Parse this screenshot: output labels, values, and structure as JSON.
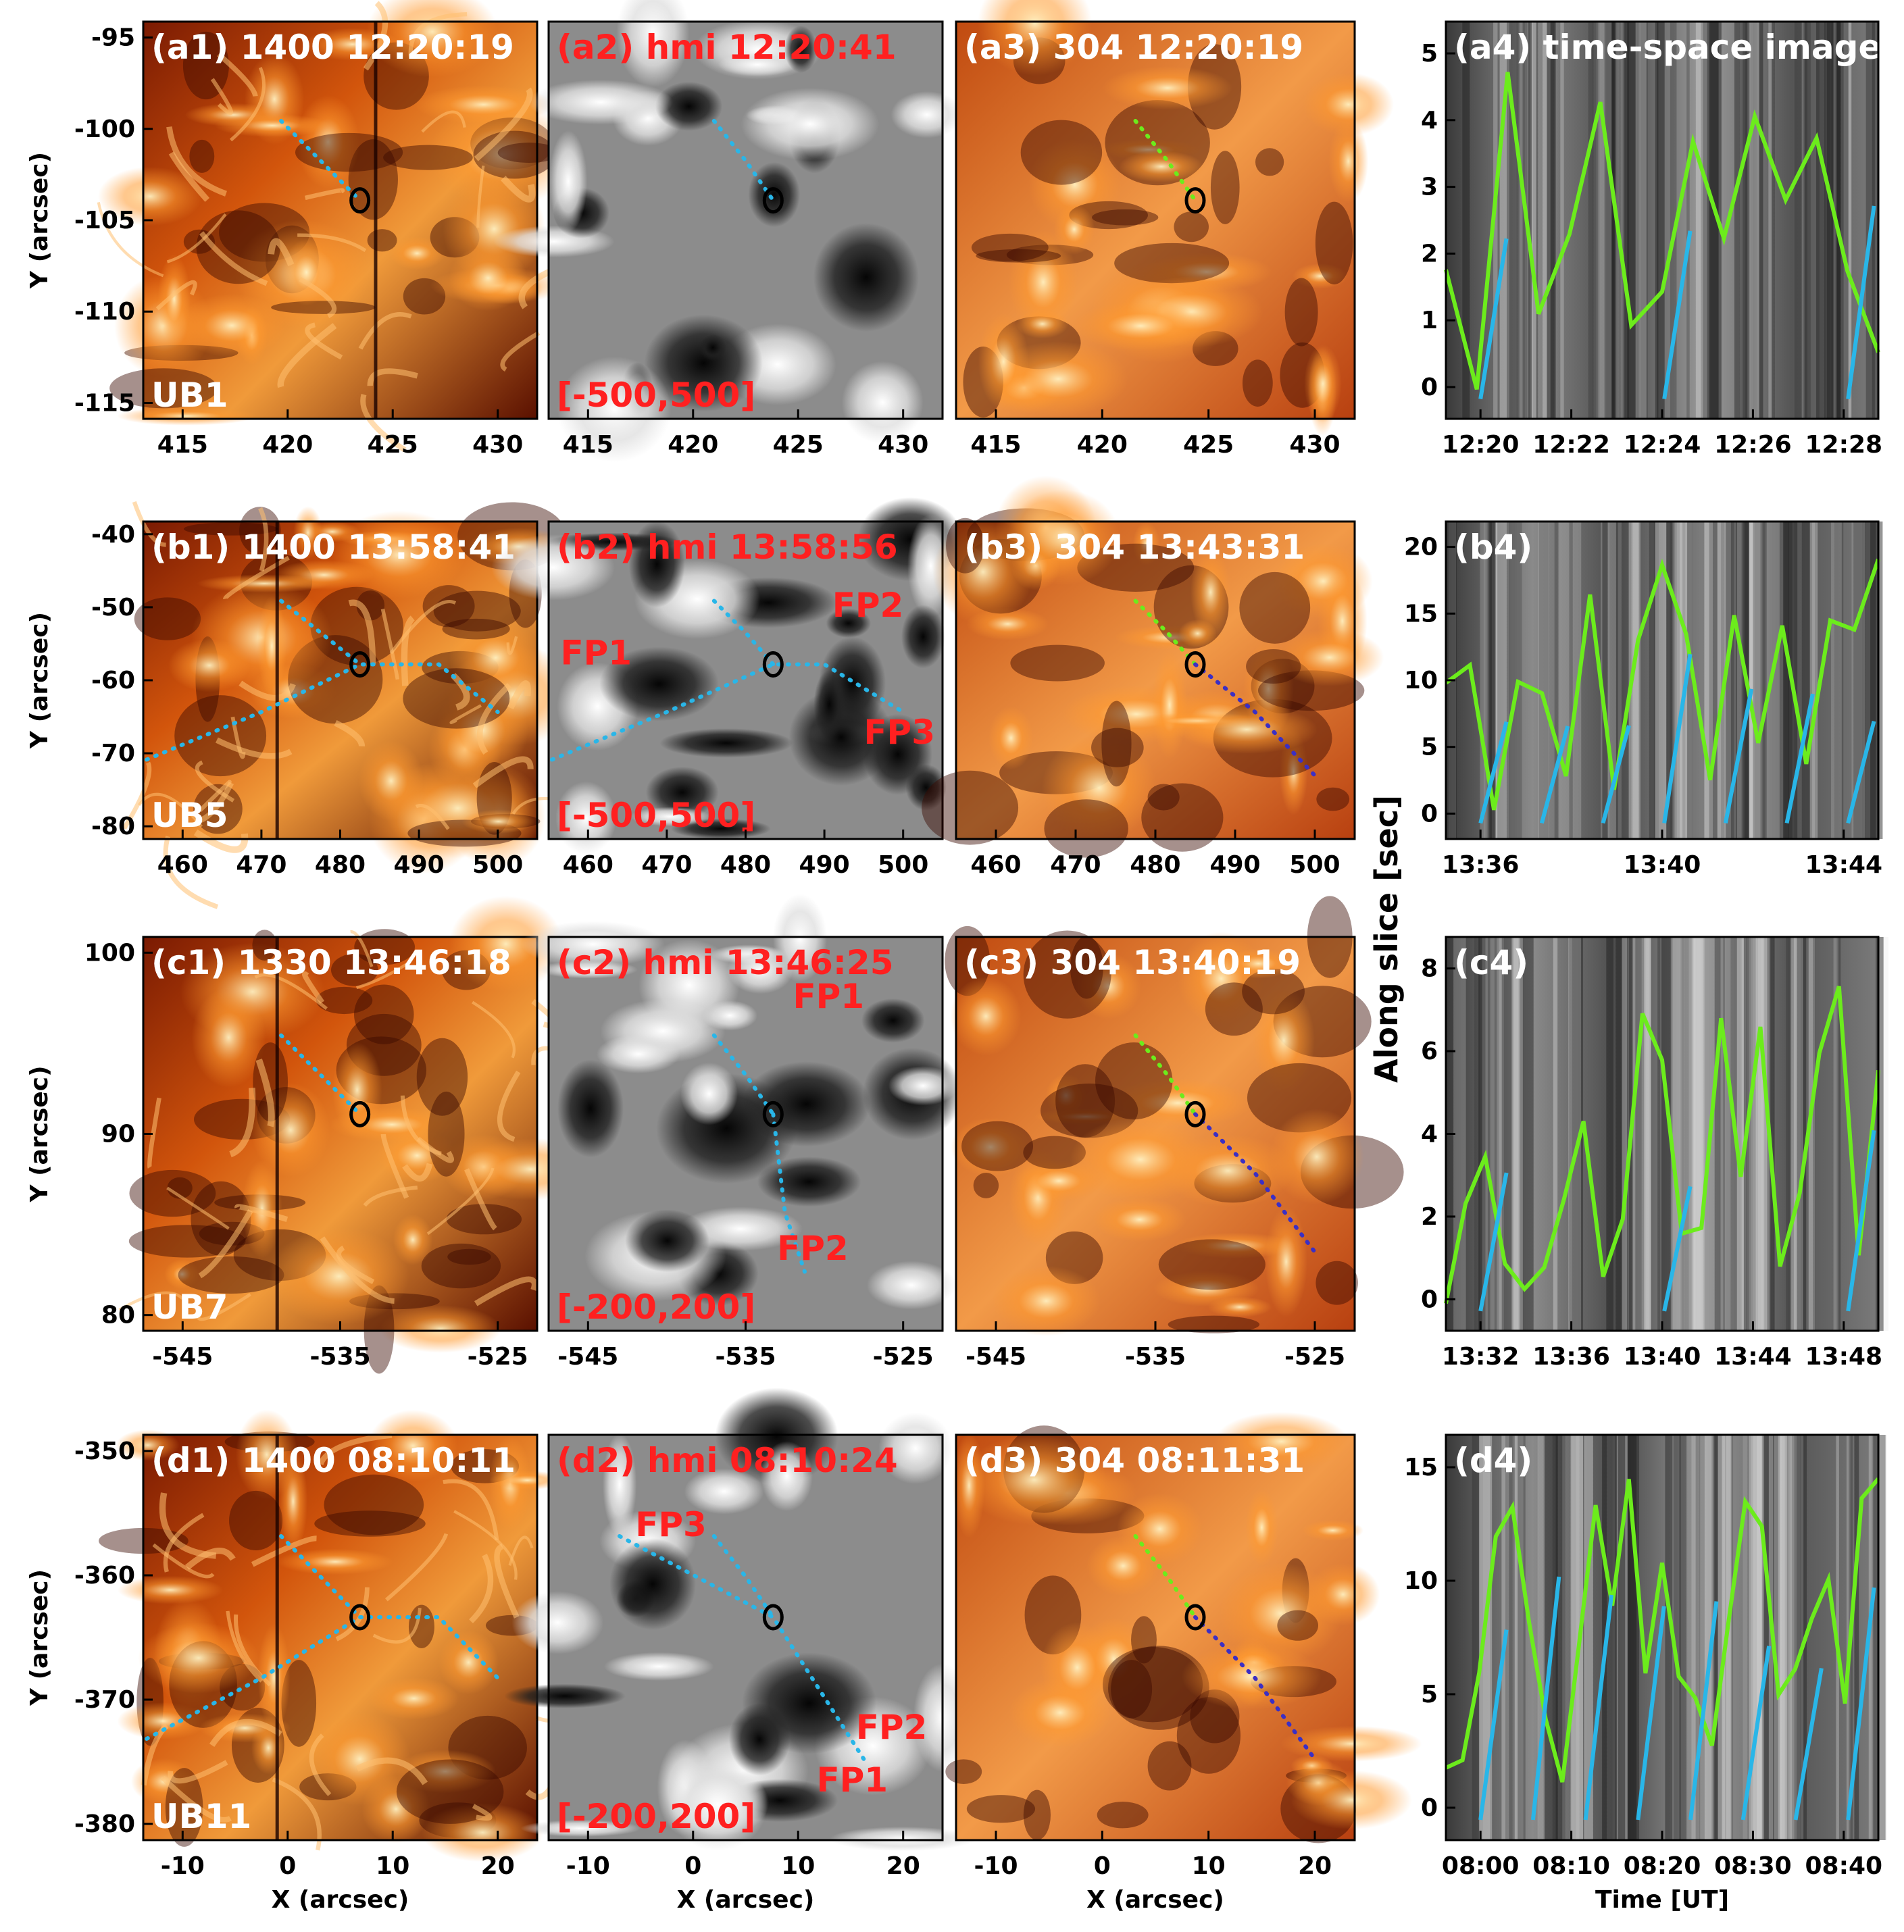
{
  "colors": {
    "heat_dark": "#2a0400",
    "heat_mid": "#b83a05",
    "heat_bright": "#ffd890",
    "gray_dark": "#151515",
    "gray_light": "#e8e8e8",
    "cyan_trace": "#29b6e8",
    "green_trace": "#6cec1c",
    "blue_trace": "#3b2fc4",
    "white_label": "#ffffff",
    "red_label": "#ff2020",
    "contour": "#000000"
  },
  "rows": [
    {
      "id": "a",
      "y_ticks": [
        "-95",
        "-100",
        "-105",
        "-110",
        "-115"
      ],
      "y_label": "Y (arcsec)",
      "x_ticks": [
        "415",
        "420",
        "425",
        "430"
      ],
      "x_ticks2": [
        "415",
        "420",
        "425",
        "430"
      ],
      "x_ticks3": [
        "415",
        "420",
        "425",
        "430"
      ],
      "x_label": "",
      "p1": {
        "label": "(a1)  1400  12:20:19",
        "id_label": "UB1"
      },
      "p2": {
        "label": "(a2)  hmi   12:20:41",
        "range": "[-500,500]",
        "fps": []
      },
      "p3": {
        "label": "(a3)  304   12:20:19"
      },
      "p4": {
        "label": "(a4) time-space image",
        "y_ticks": [
          "0",
          "1",
          "2",
          "3",
          "4",
          "5"
        ],
        "x_ticks": [
          "12:20",
          "12:22",
          "12:24",
          "12:26",
          "12:28"
        ]
      }
    },
    {
      "id": "b",
      "y_ticks": [
        "-40",
        "-50",
        "-60",
        "-70",
        "-80"
      ],
      "y_label": "Y (arcsec)",
      "x_ticks": [
        "460",
        "470",
        "480",
        "490",
        "500"
      ],
      "x_ticks2": [
        "460",
        "470",
        "480",
        "490",
        "500"
      ],
      "x_ticks3": [
        "460",
        "470",
        "480",
        "490",
        "500"
      ],
      "x_label": "",
      "p1": {
        "label": "(b1)  1400  13:58:41",
        "id_label": "UB5"
      },
      "p2": {
        "label": "(b2)  hmi   13:58:56",
        "range": "[-500,500]",
        "fps": [
          "FP1",
          "FP2",
          "FP3"
        ]
      },
      "p3": {
        "label": "(b3)  304   13:43:31"
      },
      "p4": {
        "label": "(b4)",
        "y_ticks": [
          "0",
          "5",
          "10",
          "15",
          "20"
        ],
        "x_ticks": [
          "13:36",
          "13:40",
          "13:44"
        ]
      }
    },
    {
      "id": "c",
      "y_ticks": [
        "100",
        "90",
        "80"
      ],
      "y_label": "Y (arcsec)",
      "x_ticks": [
        "-545",
        "-535",
        "-525"
      ],
      "x_ticks2": [
        "-545",
        "-535",
        "-525"
      ],
      "x_ticks3": [
        "-545",
        "-535",
        "-525"
      ],
      "x_label": "",
      "p1": {
        "label": "(c1)  1330  13:46:18",
        "id_label": "UB7"
      },
      "p2": {
        "label": "(c2)  hmi   13:46:25",
        "range": "[-200,200]",
        "fps": [
          "FP1",
          "FP2"
        ]
      },
      "p3": {
        "label": "(c3)  304   13:40:19"
      },
      "p4": {
        "label": "(c4)",
        "y_ticks": [
          "0",
          "2",
          "4",
          "6",
          "8"
        ],
        "x_ticks": [
          "13:32",
          "13:36",
          "13:40",
          "13:44",
          "13:48"
        ]
      }
    },
    {
      "id": "d",
      "y_ticks": [
        "-350",
        "-360",
        "-370",
        "-380"
      ],
      "y_label": "Y (arcsec)",
      "x_ticks": [
        "-10",
        "0",
        "10",
        "20"
      ],
      "x_ticks2": [
        "-10",
        "0",
        "10",
        "20"
      ],
      "x_ticks3": [
        "-10",
        "0",
        "10",
        "20"
      ],
      "x_label": "X (arcsec)",
      "p1": {
        "label": "(d1)  1400  08:10:11",
        "id_label": "UB11"
      },
      "p2": {
        "label": "(d2)  hmi   08:10:24",
        "range": "[-200,200]",
        "fps": [
          "FP3",
          "FP2",
          "FP1"
        ]
      },
      "p3": {
        "label": "(d3)  304   08:11:31"
      },
      "p4": {
        "label": "(d4)",
        "y_ticks": [
          "0",
          "5",
          "10",
          "15"
        ],
        "x_ticks": [
          "08:00",
          "08:10",
          "08:20",
          "08:30",
          "08:40"
        ],
        "x_label": "Time [UT]"
      }
    }
  ],
  "shared_y_label_ts": "Along slice [sec]"
}
